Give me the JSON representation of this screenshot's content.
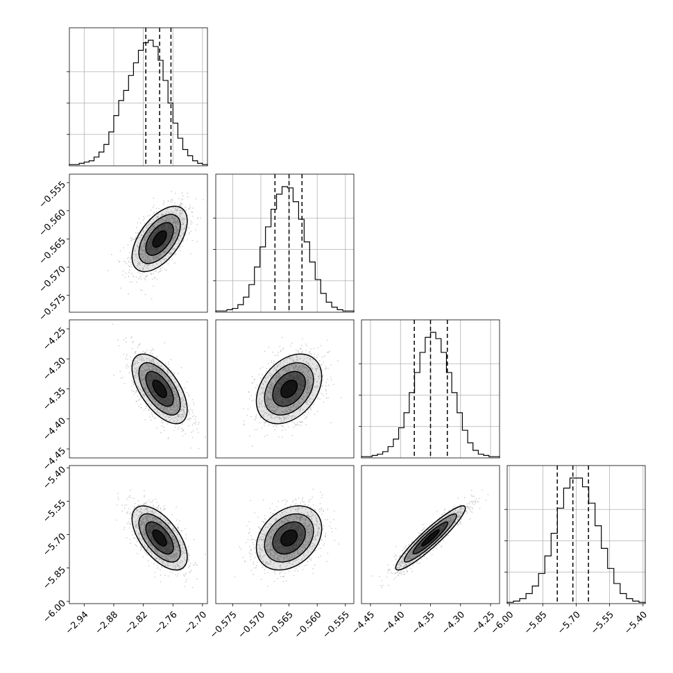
{
  "chart_data": {
    "type": "corner",
    "title": "",
    "parameters": [
      {
        "label": "",
        "range": [
          -2.97,
          -2.69
        ],
        "ticks": [
          -2.94,
          -2.88,
          -2.82,
          -2.76,
          -2.7
        ],
        "tick_labels": [
          "−2.94",
          "−2.88",
          "−2.82",
          "−2.76",
          "−2.70"
        ],
        "quantiles": [
          -2.815,
          -2.787,
          -2.764
        ],
        "median": -2.787
      },
      {
        "label": "",
        "range": [
          -0.578,
          -0.5535
        ],
        "ticks": [
          -0.575,
          -0.57,
          -0.565,
          -0.56,
          -0.555
        ],
        "tick_labels": [
          "−0.575",
          "−0.570",
          "−0.565",
          "−0.560",
          "−0.555"
        ],
        "quantiles": [
          -0.5675,
          -0.565,
          -0.5627
        ],
        "median": -0.565
      },
      {
        "label": "",
        "range": [
          -4.465,
          -4.235
        ],
        "ticks": [
          -4.45,
          -4.4,
          -4.35,
          -4.3,
          -4.25
        ],
        "tick_labels": [
          "−4.45",
          "−4.40",
          "−4.35",
          "−4.30",
          "−4.25"
        ],
        "quantiles": [
          -4.377,
          -4.35,
          -4.322
        ],
        "median": -4.35
      },
      {
        "label": "",
        "range": [
          -6.01,
          -5.39
        ],
        "ticks": [
          -6.0,
          -5.85,
          -5.7,
          -5.55,
          -5.4
        ],
        "tick_labels": [
          "−6.00",
          "−5.85",
          "−5.70",
          "−5.55",
          "−5.40"
        ],
        "quantiles": [
          -5.785,
          -5.715,
          -5.645
        ],
        "median": -5.715
      }
    ],
    "histograms": [
      {
        "param": 0,
        "bins": [
          -2.97,
          -2.69
        ],
        "counts": [
          1,
          1,
          2,
          3,
          4,
          7,
          11,
          17,
          27,
          40,
          52,
          60,
          72,
          82,
          92,
          98,
          100,
          95,
          84,
          68,
          50,
          34,
          22,
          13,
          8,
          4,
          2,
          1
        ]
      },
      {
        "param": 1,
        "bins": [
          -0.578,
          -0.5535
        ],
        "counts": [
          1,
          1,
          2,
          3,
          6,
          12,
          22,
          36,
          52,
          68,
          82,
          94,
          100,
          99,
          88,
          74,
          56,
          40,
          26,
          15,
          8,
          4,
          2,
          1,
          1
        ]
      },
      {
        "param": 2,
        "bins": [
          -4.465,
          -4.235
        ],
        "counts": [
          1,
          1,
          2,
          3,
          5,
          9,
          15,
          24,
          36,
          52,
          68,
          84,
          96,
          100,
          95,
          84,
          68,
          52,
          36,
          22,
          12,
          6,
          3,
          2,
          1,
          1
        ]
      },
      {
        "param": 3,
        "bins": [
          -6.01,
          -5.39
        ],
        "counts": [
          1,
          2,
          4,
          8,
          14,
          24,
          38,
          56,
          76,
          92,
          100,
          100,
          93,
          80,
          62,
          44,
          28,
          16,
          8,
          4,
          2,
          1
        ]
      }
    ],
    "correlations": [
      {
        "x": 0,
        "y": 1,
        "center": [
          -2.787,
          -0.565
        ],
        "sigma": [
          0.028,
          0.0029
        ],
        "rho": 0.55
      },
      {
        "x": 0,
        "y": 2,
        "center": [
          -2.787,
          -4.35
        ],
        "sigma": [
          0.028,
          0.029
        ],
        "rho": -0.6
      },
      {
        "x": 1,
        "y": 2,
        "center": [
          -0.565,
          -4.35
        ],
        "sigma": [
          0.0029,
          0.029
        ],
        "rho": 0.35
      },
      {
        "x": 0,
        "y": 3,
        "center": [
          -2.787,
          -5.715
        ],
        "sigma": [
          0.028,
          0.072
        ],
        "rho": -0.6
      },
      {
        "x": 1,
        "y": 3,
        "center": [
          -0.565,
          -5.715
        ],
        "sigma": [
          0.0029,
          0.072
        ],
        "rho": 0.3
      },
      {
        "x": 2,
        "y": 3,
        "center": [
          -4.35,
          -5.715
        ],
        "sigma": [
          0.029,
          0.072
        ],
        "rho": 0.93
      }
    ],
    "contour_levels_sigma": [
      0.5,
      1.0,
      1.5,
      2.0
    ],
    "grid": true,
    "colors": {
      "line": "#000000",
      "grid": "#b0b0b0",
      "density": "#000000",
      "scatter": "#bdbdbd"
    }
  }
}
